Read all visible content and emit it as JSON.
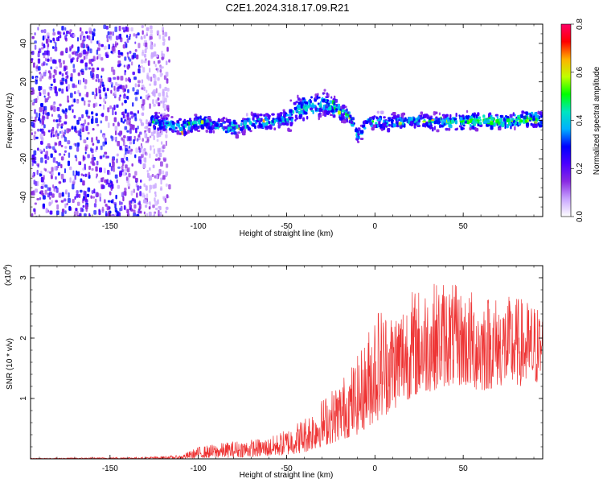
{
  "title": "C2E1.2024.318.17.09.R21",
  "chart_data": [
    {
      "type": "heatmap",
      "xlabel": "Height of straight line (km)",
      "ylabel": "Frequency (Hz)",
      "xlim": [
        -195,
        95
      ],
      "ylim": [
        -50,
        50
      ],
      "xticks": [
        -150,
        -100,
        -50,
        0,
        50
      ],
      "yticks": [
        -40,
        -20,
        0,
        20,
        40
      ],
      "colorbar": {
        "label": "Normalized spectral amplitude",
        "range": [
          0.0,
          0.8
        ],
        "ticks": [
          "0.0",
          "0.2",
          "0.4",
          "0.6",
          "0.8"
        ],
        "colors": [
          "#ffffff",
          "#c9a6ff",
          "#8a2be2",
          "#4b00ff",
          "#0000ff",
          "#00b0ff",
          "#00e5c0",
          "#00ff00",
          "#c0ff00",
          "#ffb000",
          "#ff0000",
          "#ff0066"
        ]
      },
      "ridge": {
        "x": [
          -125,
          -110,
          -100,
          -90,
          -80,
          -70,
          -60,
          -50,
          -45,
          -40,
          -35,
          -30,
          -25,
          -20,
          -15,
          -10,
          -5,
          0,
          10,
          20,
          30,
          40,
          50,
          60,
          70,
          80,
          90,
          95
        ],
        "y": [
          0,
          -3,
          0,
          -2,
          -3,
          0,
          0,
          2,
          6,
          8,
          8,
          10,
          8,
          5,
          3,
          -8,
          0,
          0,
          0,
          1,
          0,
          0,
          0,
          1,
          0,
          1,
          2,
          0
        ]
      },
      "noise_region_x": [
        -195,
        -125
      ]
    },
    {
      "type": "line",
      "xlabel": "Height of straight line (km)",
      "ylabel": "SNR (10 * v/v)",
      "yscale_note": "(x10",
      "yscale_exp": "4",
      "xlim": [
        -195,
        95
      ],
      "ylim": [
        0,
        3.2
      ],
      "xticks": [
        -150,
        -100,
        -50,
        0,
        50
      ],
      "yticks": [
        1,
        2,
        3
      ],
      "color": "#ee3333",
      "envelope": {
        "x": [
          -195,
          -130,
          -110,
          -100,
          -80,
          -60,
          -50,
          -40,
          -30,
          -20,
          -15,
          -10,
          -5,
          0,
          10,
          20,
          30,
          40,
          50,
          60,
          70,
          80,
          90,
          95
        ],
        "low": [
          0,
          0,
          0,
          0.01,
          0.02,
          0.04,
          0.06,
          0.1,
          0.2,
          0.3,
          0.35,
          0.4,
          0.5,
          0.6,
          0.8,
          1.0,
          1.1,
          1.2,
          1.2,
          1.1,
          1.2,
          1.2,
          1.2,
          1.3
        ],
        "high": [
          0.01,
          0.03,
          0.06,
          0.2,
          0.3,
          0.35,
          0.5,
          0.7,
          1.0,
          1.3,
          1.5,
          1.7,
          2.0,
          2.6,
          2.5,
          2.8,
          2.9,
          3.0,
          2.8,
          2.8,
          2.7,
          2.7,
          2.6,
          2.5
        ]
      }
    }
  ]
}
